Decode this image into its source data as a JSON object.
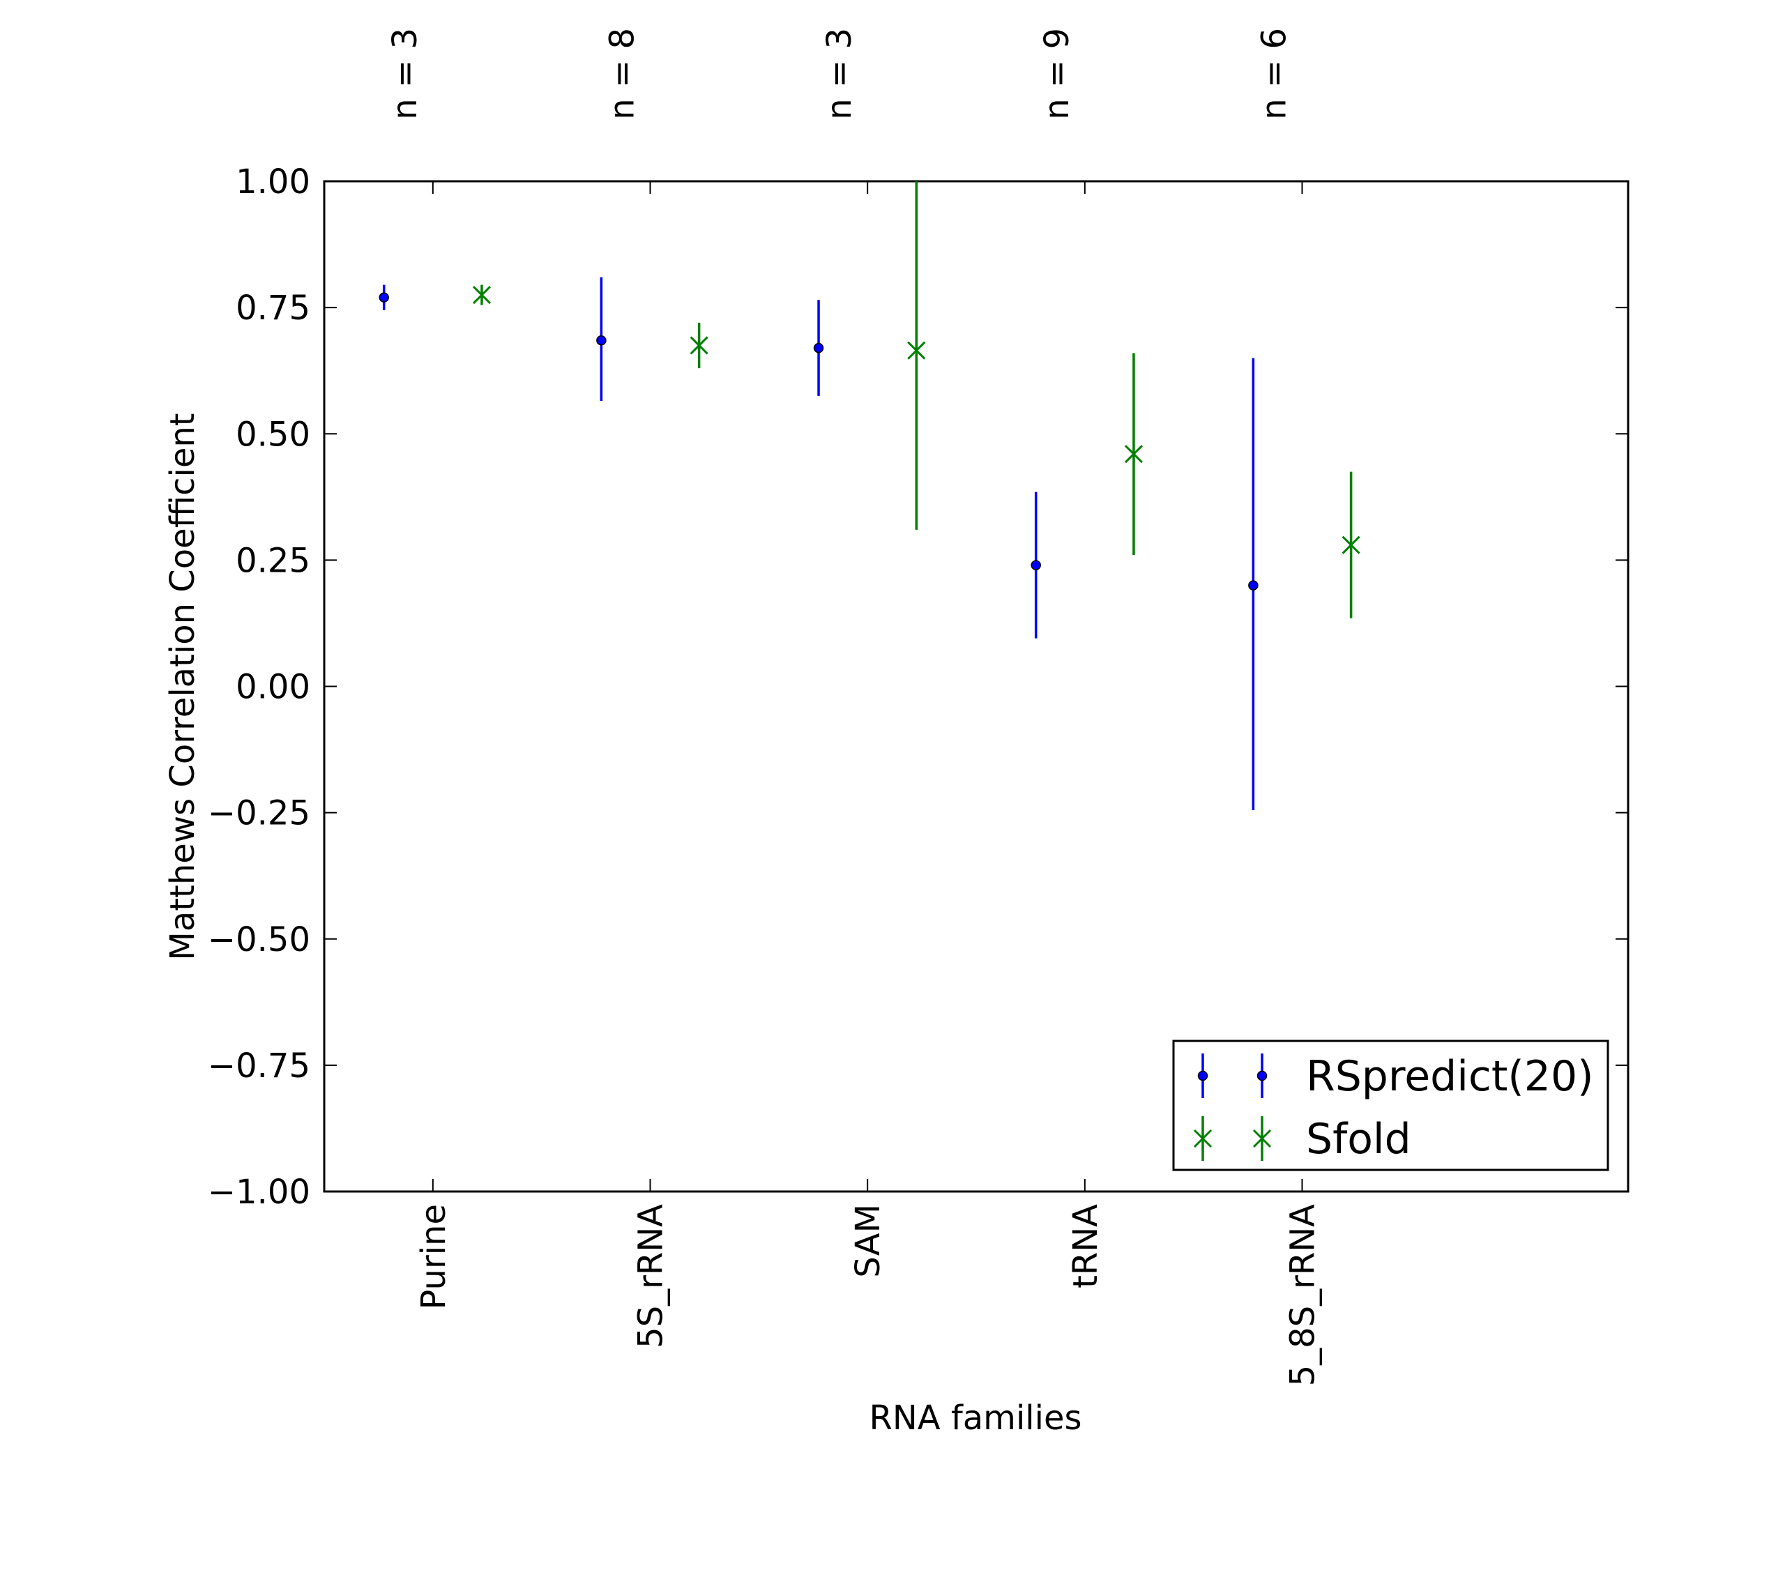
{
  "chart_data": {
    "type": "scatter",
    "title": "",
    "xlabel": "RNA families",
    "ylabel": "Matthews Correlation Coefficient",
    "ylim": [
      -1.0,
      1.0
    ],
    "yticks": [
      "1.00",
      "0.75",
      "0.50",
      "0.25",
      "0.00",
      "−0.25",
      "−0.50",
      "−0.75",
      "−1.00"
    ],
    "ytick_values": [
      1.0,
      0.75,
      0.5,
      0.25,
      0.0,
      -0.25,
      -0.5,
      -0.75,
      -1.0
    ],
    "categories": [
      "Purine",
      "5S_rRNA",
      "SAM",
      "tRNA",
      "5_8S_rRNA"
    ],
    "group_counts": [
      "n = 3",
      "n = 8",
      "n = 3",
      "n = 9",
      "n = 6"
    ],
    "grid": false,
    "legend_position": "lower-right",
    "series": [
      {
        "name": "RSpredict(20)",
        "color": "#0000ff",
        "marker": "point",
        "values": [
          0.77,
          0.685,
          0.67,
          0.24,
          0.2
        ],
        "error_low": [
          0.745,
          0.565,
          0.575,
          0.095,
          -0.245
        ],
        "error_high": [
          0.795,
          0.81,
          0.765,
          0.385,
          0.65
        ]
      },
      {
        "name": "Sfold",
        "color": "#008000",
        "marker": "x",
        "values": [
          0.775,
          0.675,
          0.665,
          0.46,
          0.28
        ],
        "error_low": [
          0.755,
          0.63,
          0.31,
          0.26,
          0.135
        ],
        "error_high": [
          0.795,
          0.72,
          1.0,
          0.66,
          0.425
        ]
      }
    ]
  }
}
